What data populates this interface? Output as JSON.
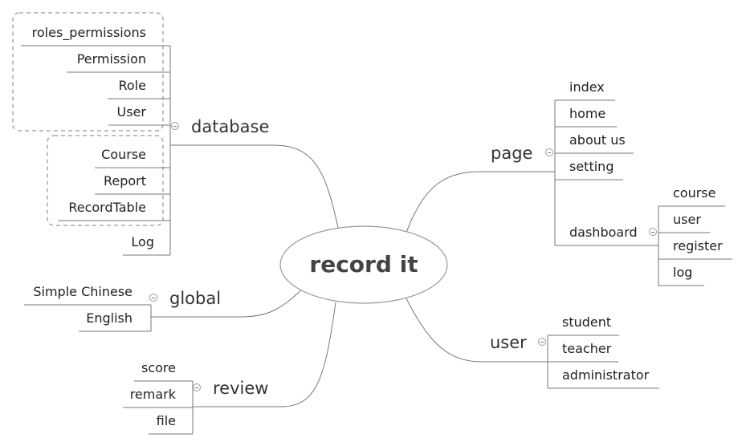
{
  "root": {
    "label": "record it"
  },
  "branches": {
    "database": {
      "label": "database",
      "items": [
        "roles_permissions",
        "Permission",
        "Role",
        "User",
        "Course",
        "Report",
        "RecordTable",
        "Log"
      ]
    },
    "global": {
      "label": "global",
      "items": [
        "Simple Chinese",
        "English"
      ]
    },
    "review": {
      "label": "review",
      "items": [
        "score",
        "remark",
        "file"
      ]
    },
    "page": {
      "label": "page",
      "items": [
        "index",
        "home",
        "about us",
        "setting",
        "dashboard"
      ],
      "dashboard_items": [
        "course",
        "user",
        "register",
        "log"
      ]
    },
    "user": {
      "label": "user",
      "items": [
        "student",
        "teacher",
        "administrator"
      ]
    }
  },
  "colors": {
    "line": "#777777",
    "group_border": "#aaaaaa",
    "text": "#222222"
  }
}
